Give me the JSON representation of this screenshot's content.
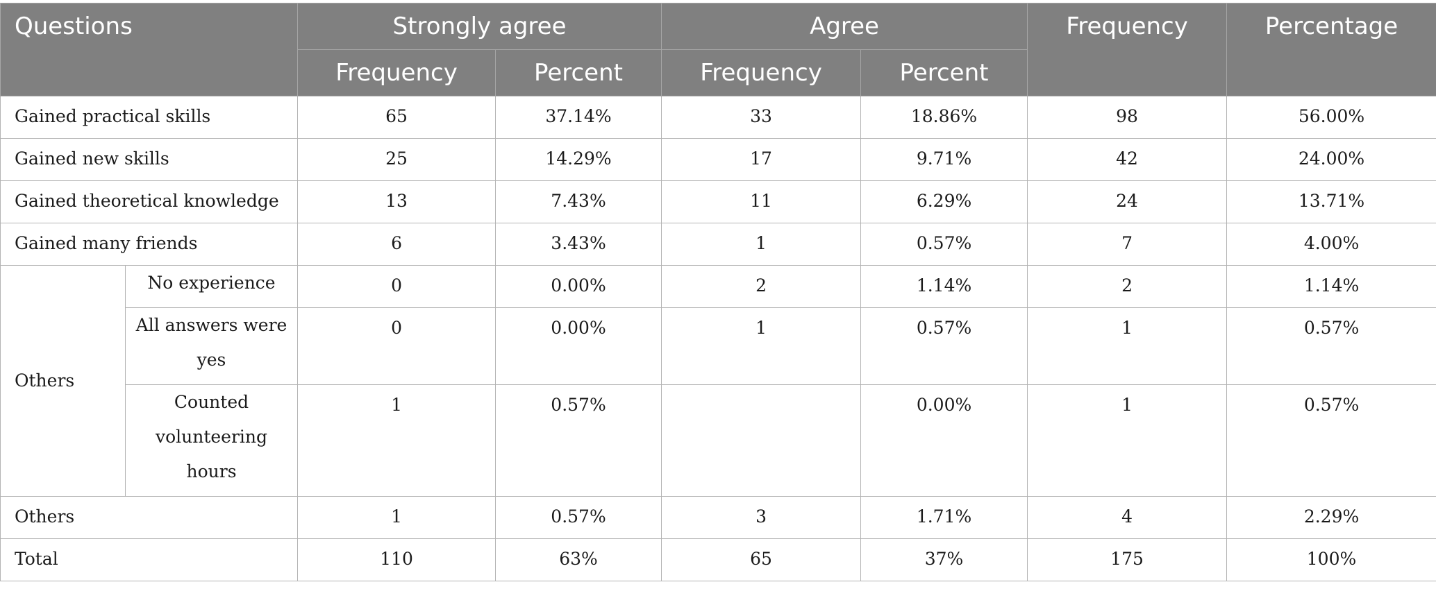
{
  "header": {
    "questions": "Questions",
    "strongly_agree": "Strongly agree",
    "agree": "Agree",
    "frequency": "Frequency",
    "percentage": "Percentage",
    "sub_frequency": "Frequency",
    "sub_percent": "Percent"
  },
  "rows": [
    {
      "question": "Gained practical skills",
      "sa_freq": "65",
      "sa_pct": "37.14%",
      "a_freq": "33",
      "a_pct": "18.86%",
      "freq": "98",
      "pct": "56.00%"
    },
    {
      "question": "Gained new skills",
      "sa_freq": "25",
      "sa_pct": "14.29%",
      "a_freq": "17",
      "a_pct": "9.71%",
      "freq": "42",
      "pct": "24.00%"
    },
    {
      "question": "Gained theoretical knowledge",
      "sa_freq": "13",
      "sa_pct": "7.43%",
      "a_freq": "11",
      "a_pct": "6.29%",
      "freq": "24",
      "pct": "13.71%"
    },
    {
      "question": "Gained many friends",
      "sa_freq": "6",
      "sa_pct": "3.43%",
      "a_freq": "1",
      "a_pct": "0.57%",
      "freq": "7",
      "pct": "4.00%"
    }
  ],
  "others_group": {
    "label": "Others",
    "items": [
      {
        "question": "No experience",
        "sa_freq": "0",
        "sa_pct": "0.00%",
        "a_freq": "2",
        "a_pct": "1.14%",
        "freq": "2",
        "pct": "1.14%"
      },
      {
        "question": "All answers were yes",
        "sa_freq": "0",
        "sa_pct": "0.00%",
        "a_freq": "1",
        "a_pct": "0.57%",
        "freq": "1",
        "pct": "0.57%"
      },
      {
        "question": "Counted volunteering hours",
        "sa_freq": "1",
        "sa_pct": "0.57%",
        "a_freq": "",
        "a_pct": "0.00%",
        "freq": "1",
        "pct": "0.57%"
      }
    ]
  },
  "others_row": {
    "question": "Others",
    "sa_freq": "1",
    "sa_pct": "0.57%",
    "a_freq": "3",
    "a_pct": "1.71%",
    "freq": "4",
    "pct": "2.29%"
  },
  "total_row": {
    "question": "Total",
    "sa_freq": "110",
    "sa_pct": "63%",
    "a_freq": "65",
    "a_pct": "37%",
    "freq": "175",
    "pct": "100%"
  }
}
